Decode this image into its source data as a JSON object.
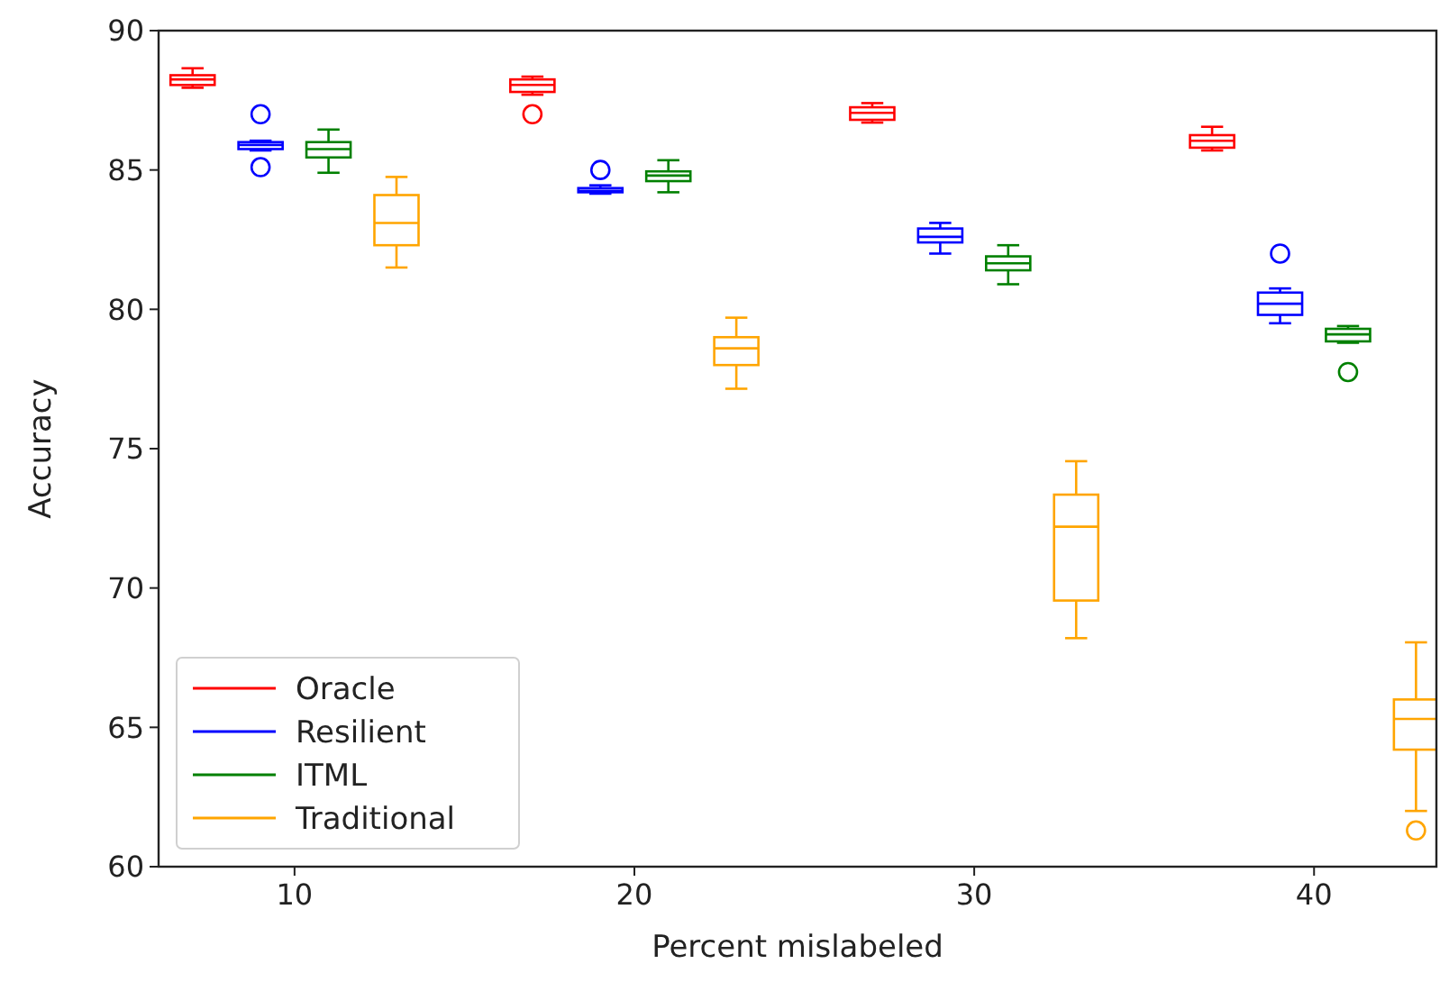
{
  "chart_data": {
    "type": "box",
    "xlabel": "Percent mislabeled",
    "ylabel": "Accuracy",
    "xlim": [
      6,
      43.6
    ],
    "xticks": [
      10,
      20,
      30,
      40
    ],
    "ylim": [
      60,
      90
    ],
    "yticks": [
      60,
      65,
      70,
      75,
      80,
      85,
      90
    ],
    "grid": false,
    "legend": "bottom left",
    "series": [
      {
        "name": "Oracle",
        "color": "#ff0000",
        "x": [
          7,
          17,
          27,
          37
        ],
        "boxes": [
          {
            "low": 87.95,
            "q1": 88.05,
            "median": 88.25,
            "q3": 88.4,
            "high": 88.65
          },
          {
            "low": 87.7,
            "q1": 87.8,
            "median": 88.05,
            "q3": 88.25,
            "high": 88.35,
            "outliers": [
              87.0
            ]
          },
          {
            "low": 86.7,
            "q1": 86.8,
            "median": 87.05,
            "q3": 87.25,
            "high": 87.4
          },
          {
            "low": 85.7,
            "q1": 85.8,
            "median": 86.05,
            "q3": 86.25,
            "high": 86.55
          }
        ]
      },
      {
        "name": "Resilient",
        "color": "#0000ff",
        "x": [
          9,
          19,
          29,
          39
        ],
        "boxes": [
          {
            "low": 85.7,
            "q1": 85.75,
            "median": 85.9,
            "q3": 86.0,
            "high": 86.05,
            "outliers": [
              87.0,
              85.1
            ]
          },
          {
            "low": 84.15,
            "q1": 84.2,
            "median": 84.25,
            "q3": 84.35,
            "high": 84.45,
            "outliers": [
              85.0
            ]
          },
          {
            "low": 82.0,
            "q1": 82.4,
            "median": 82.6,
            "q3": 82.9,
            "high": 83.1
          },
          {
            "low": 79.5,
            "q1": 79.8,
            "median": 80.2,
            "q3": 80.6,
            "high": 80.75,
            "outliers": [
              82.0
            ]
          }
        ]
      },
      {
        "name": "ITML",
        "color": "#008000",
        "x": [
          11,
          21,
          31,
          41
        ],
        "boxes": [
          {
            "low": 84.9,
            "q1": 85.45,
            "median": 85.75,
            "q3": 86.0,
            "high": 86.45
          },
          {
            "low": 84.2,
            "q1": 84.6,
            "median": 84.8,
            "q3": 84.95,
            "high": 85.35
          },
          {
            "low": 80.9,
            "q1": 81.4,
            "median": 81.65,
            "q3": 81.9,
            "high": 82.3
          },
          {
            "low": 78.8,
            "q1": 78.85,
            "median": 79.1,
            "q3": 79.3,
            "high": 79.4,
            "outliers": [
              77.75
            ]
          }
        ]
      },
      {
        "name": "Traditional",
        "color": "#ffa500",
        "x": [
          13,
          23,
          33,
          43
        ],
        "boxes": [
          {
            "low": 81.5,
            "q1": 82.3,
            "median": 83.1,
            "q3": 84.1,
            "high": 84.75
          },
          {
            "low": 77.15,
            "q1": 78.0,
            "median": 78.6,
            "q3": 79.0,
            "high": 79.7
          },
          {
            "low": 68.2,
            "q1": 69.55,
            "median": 72.2,
            "q3": 73.35,
            "high": 74.55
          },
          {
            "low": 62.0,
            "q1": 64.2,
            "median": 65.3,
            "q3": 66.0,
            "high": 68.05,
            "outliers": [
              61.3
            ]
          }
        ]
      }
    ]
  }
}
